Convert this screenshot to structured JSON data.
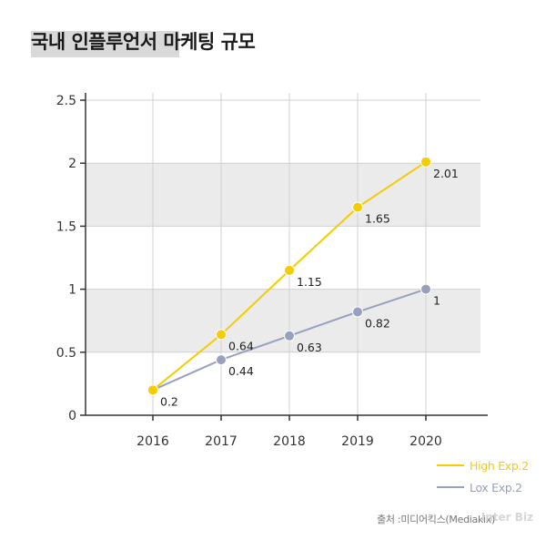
{
  "title": "국내 인플루언서 마케팅 규모",
  "source": "출처 :미디어킥스(Mediakix)",
  "watermark": "Inter Biz",
  "colors": {
    "High Exp.2": "#f5cc00",
    "Lox Exp.2": "#98a0bf",
    "band": "#ebebeb",
    "grid": "#d0d0d0",
    "axis": "#333333"
  },
  "chart_data": {
    "type": "line",
    "title": "",
    "xlabel": "",
    "ylabel": "",
    "x": [
      "2016",
      "2017",
      "2018",
      "2019",
      "2020"
    ],
    "y_ticks": [
      "0",
      "0.5",
      "1",
      "1.5",
      "2",
      "2.5"
    ],
    "ylim": [
      0,
      2.5
    ],
    "grid": true,
    "legend_position": "bottom-right",
    "series": [
      {
        "name": "High Exp.2",
        "values": [
          0.2,
          0.64,
          1.15,
          1.65,
          2.01
        ],
        "labels": [
          "",
          "0.64",
          "1.15",
          "1.65",
          "2.01"
        ]
      },
      {
        "name": "Lox Exp.2",
        "values": [
          0.2,
          0.44,
          0.63,
          0.82,
          1
        ],
        "labels": [
          "0.2",
          "0.44",
          "0.63",
          "0.82",
          "1"
        ]
      }
    ]
  }
}
